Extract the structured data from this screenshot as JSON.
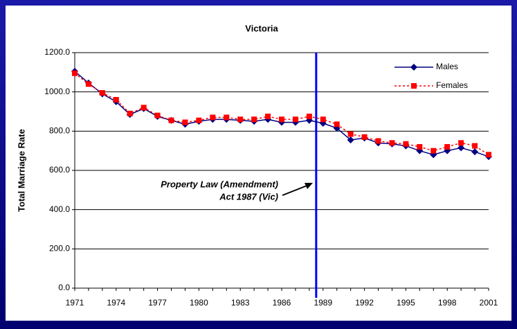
{
  "chart_data": {
    "type": "line",
    "title": "Victoria",
    "y_label": "Total Marriage Rate",
    "annotation": [
      "Property Law (Amendment)",
      "Act 1987 (Vic)"
    ],
    "categories": [
      1971,
      null,
      null,
      1974,
      null,
      null,
      1977,
      null,
      null,
      1980,
      null,
      null,
      1983,
      null,
      null,
      1986,
      null,
      null,
      1989,
      null,
      null,
      1992,
      null,
      null,
      1995,
      null,
      null,
      1998,
      null,
      null,
      2001
    ],
    "series": [
      {
        "name": "Males",
        "color": "#000080",
        "marker": "diamond",
        "dash": false,
        "values": [
          1105,
          1045,
          990,
          950,
          885,
          915,
          875,
          855,
          835,
          850,
          860,
          860,
          855,
          850,
          860,
          845,
          845,
          855,
          840,
          815,
          755,
          765,
          740,
          735,
          725,
          700,
          680,
          700,
          715,
          695,
          670
        ]
      },
      {
        "name": "Females",
        "color": "#ff0000",
        "marker": "square",
        "dash": true,
        "values": [
          1095,
          1040,
          995,
          960,
          890,
          920,
          880,
          855,
          845,
          855,
          870,
          870,
          860,
          860,
          875,
          860,
          860,
          875,
          860,
          835,
          785,
          770,
          750,
          740,
          735,
          720,
          700,
          720,
          740,
          725,
          680
        ]
      }
    ],
    "ylim": [
      0,
      1200
    ],
    "yticks": [
      {
        "value": 0,
        "label": "0.0"
      },
      {
        "value": 200,
        "label": "200.0"
      },
      {
        "value": 400,
        "label": "400.0"
      },
      {
        "value": 600,
        "label": "600.0"
      },
      {
        "value": 800,
        "label": "800.0"
      },
      {
        "value": 1000,
        "label": "1000.0"
      },
      {
        "value": 1200,
        "label": "1200.0"
      }
    ],
    "grid": true,
    "legend": "top-right"
  }
}
